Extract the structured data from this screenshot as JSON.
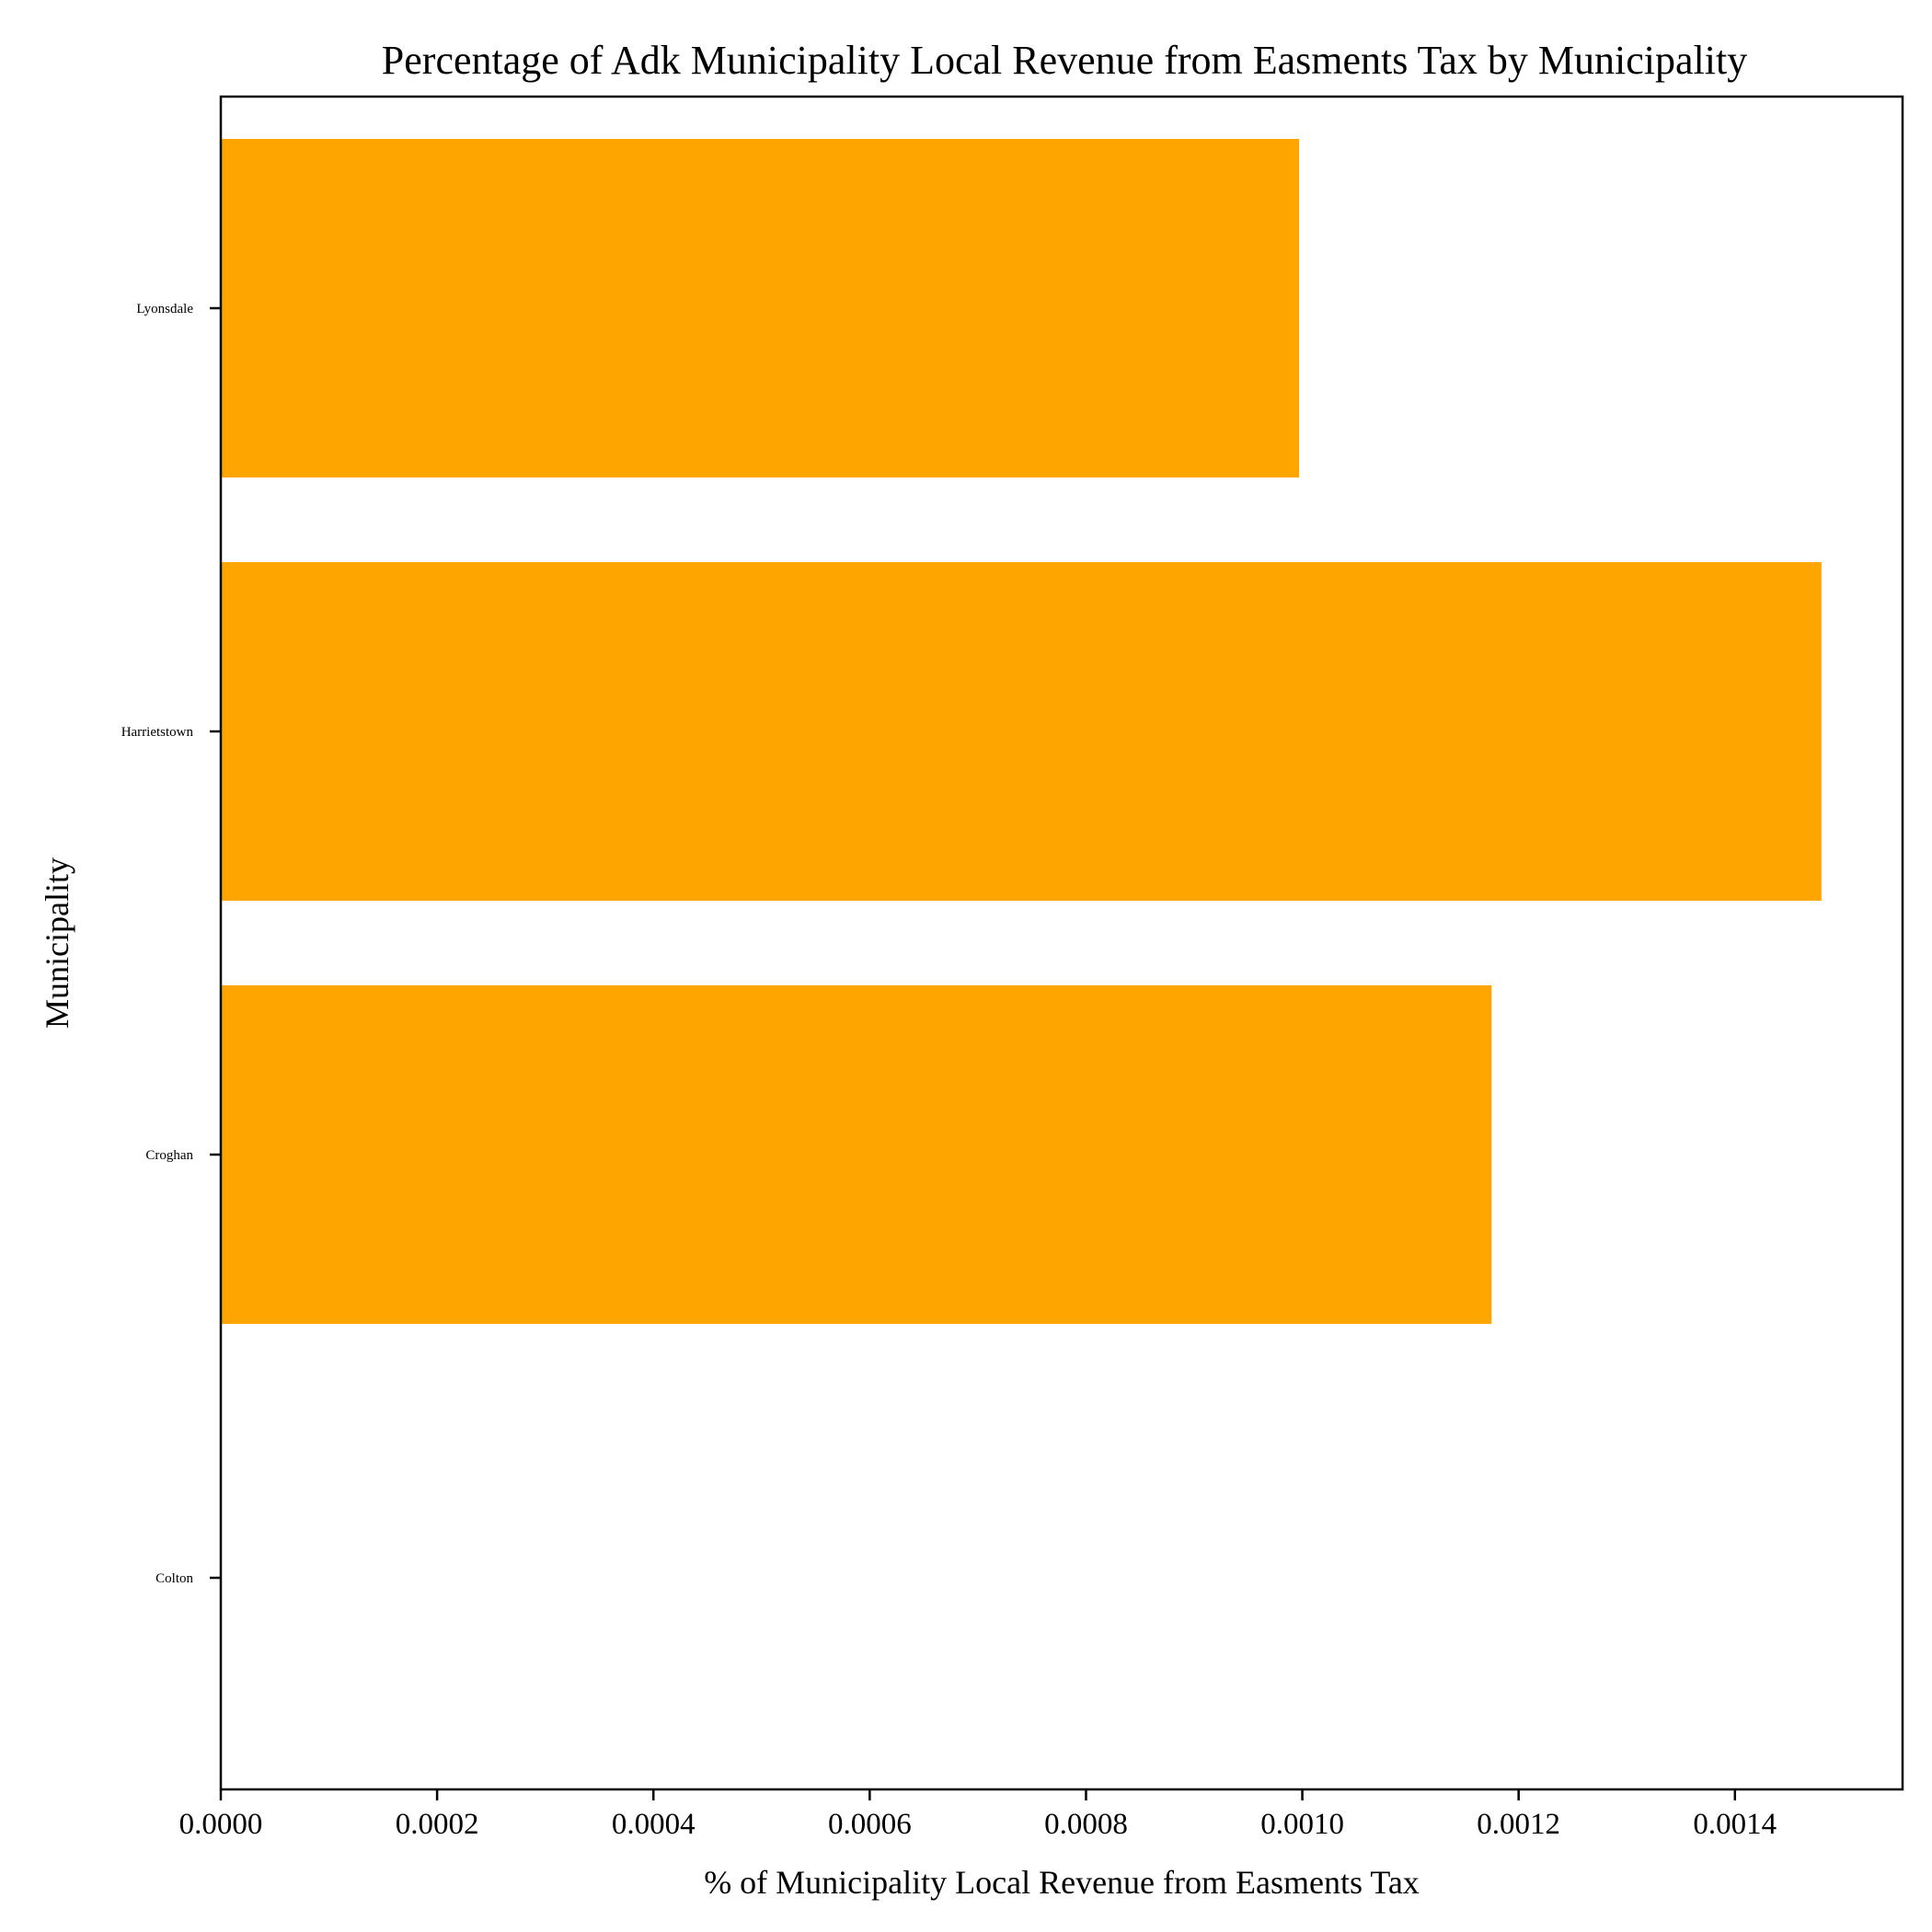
{
  "chart_data": {
    "type": "bar",
    "orientation": "horizontal",
    "title": "Percentage of Adk Municipality Local Revenue from Easments Tax by Municipality",
    "xlabel": "% of Municipality Local Revenue from Easments Tax",
    "ylabel": "Municipality",
    "categories": [
      "Colton",
      "Croghan",
      "Harrietstown",
      "Lyonsdale"
    ],
    "values": [
      0.0,
      0.001175,
      0.00148,
      0.000997
    ],
    "xlim": [
      0,
      0.001555
    ],
    "xticks": [
      "0.0000",
      "0.0002",
      "0.0004",
      "0.0006",
      "0.0008",
      "0.0010",
      "0.0012",
      "0.0014"
    ],
    "bar_color": "#ffa500",
    "grid": false,
    "legend": "none"
  }
}
